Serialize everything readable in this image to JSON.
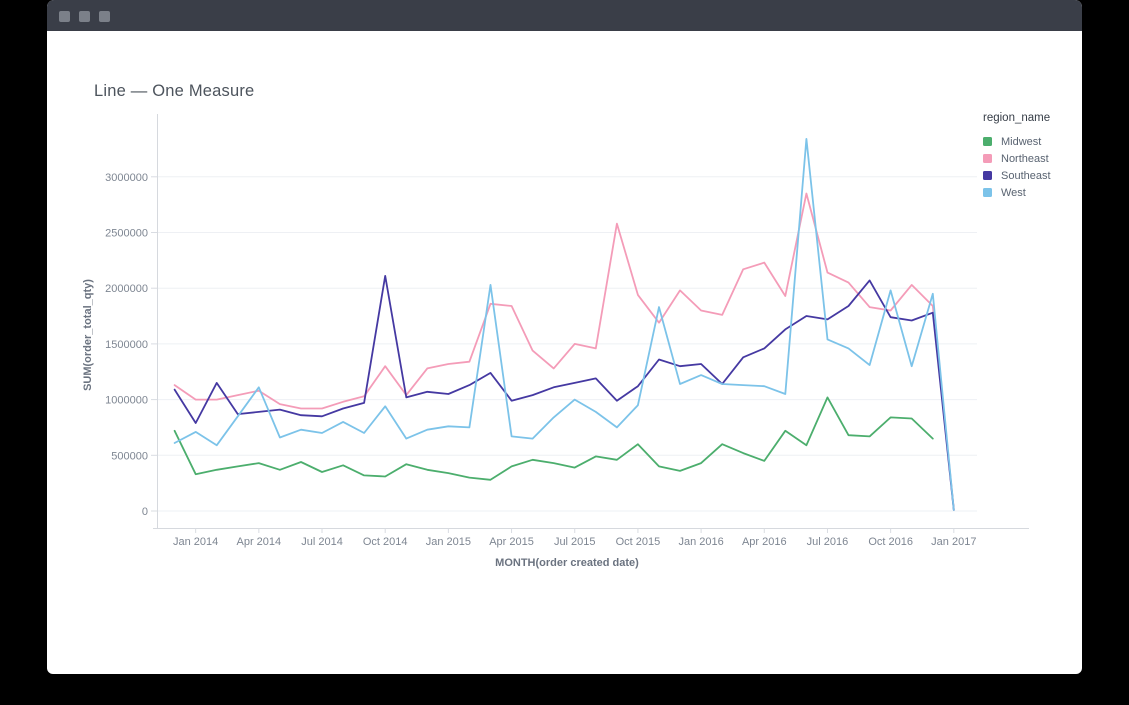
{
  "header": {
    "title": "Line — One Measure"
  },
  "window": {
    "dot_count": 3,
    "titlebar_color": "#3a3e48",
    "dot_color": "#7b8089"
  },
  "legend": {
    "title": "region_name",
    "items": [
      {
        "label": "Midwest",
        "color": "#4cae6d"
      },
      {
        "label": "Northeast",
        "color": "#f49cb8"
      },
      {
        "label": "Southeast",
        "color": "#4539a2"
      },
      {
        "label": "West",
        "color": "#7cc3e9"
      }
    ]
  },
  "chart_data": {
    "type": "line",
    "title": "Line — One Measure",
    "xlabel": "MONTH(order created date)",
    "ylabel": "SUM(order_total_qty)",
    "legend_position": "right",
    "grid": true,
    "ylim": [
      0,
      3400000
    ],
    "y_ticks": [
      0,
      500000,
      1000000,
      1500000,
      2000000,
      2500000,
      3000000
    ],
    "y_tick_labels": [
      "0",
      "500000",
      "1000000",
      "1500000",
      "2000000",
      "2500000",
      "3000000"
    ],
    "x": [
      "Dec 2013",
      "Jan 2014",
      "Feb 2014",
      "Mar 2014",
      "Apr 2014",
      "May 2014",
      "Jun 2014",
      "Jul 2014",
      "Aug 2014",
      "Sep 2014",
      "Oct 2014",
      "Nov 2014",
      "Dec 2014",
      "Jan 2015",
      "Feb 2015",
      "Mar 2015",
      "Apr 2015",
      "May 2015",
      "Jun 2015",
      "Jul 2015",
      "Aug 2015",
      "Sep 2015",
      "Oct 2015",
      "Nov 2015",
      "Dec 2015",
      "Jan 2016",
      "Feb 2016",
      "Mar 2016",
      "Apr 2016",
      "May 2016",
      "Jun 2016",
      "Jul 2016",
      "Aug 2016",
      "Sep 2016",
      "Oct 2016",
      "Nov 2016",
      "Dec 2016",
      "Jan 2017"
    ],
    "x_tick_every": 3,
    "x_tick_start_index": 1,
    "series": [
      {
        "name": "Midwest",
        "color": "#4cae6d",
        "values": [
          720000,
          330000,
          370000,
          400000,
          430000,
          370000,
          440000,
          350000,
          410000,
          320000,
          310000,
          420000,
          370000,
          340000,
          300000,
          280000,
          400000,
          460000,
          430000,
          390000,
          490000,
          460000,
          600000,
          400000,
          360000,
          430000,
          600000,
          520000,
          450000,
          720000,
          590000,
          1020000,
          680000,
          670000,
          840000,
          830000,
          650000,
          null
        ]
      },
      {
        "name": "Northeast",
        "color": "#f49cb8",
        "values": [
          1130000,
          1000000,
          1000000,
          1040000,
          1080000,
          960000,
          920000,
          920000,
          980000,
          1030000,
          1300000,
          1040000,
          1280000,
          1320000,
          1340000,
          1860000,
          1840000,
          1440000,
          1280000,
          1500000,
          1460000,
          2580000,
          1940000,
          1690000,
          1980000,
          1800000,
          1760000,
          2170000,
          2230000,
          1930000,
          2850000,
          2140000,
          2050000,
          1830000,
          1800000,
          2030000,
          1840000,
          20000
        ]
      },
      {
        "name": "Southeast",
        "color": "#4539a2",
        "values": [
          1090000,
          790000,
          1150000,
          870000,
          890000,
          910000,
          860000,
          850000,
          920000,
          970000,
          2110000,
          1020000,
          1070000,
          1050000,
          1130000,
          1240000,
          990000,
          1040000,
          1110000,
          1150000,
          1190000,
          990000,
          1120000,
          1360000,
          1300000,
          1320000,
          1140000,
          1380000,
          1460000,
          1630000,
          1750000,
          1720000,
          1840000,
          2070000,
          1740000,
          1710000,
          1780000,
          10000
        ]
      },
      {
        "name": "West",
        "color": "#7cc3e9",
        "values": [
          610000,
          710000,
          590000,
          850000,
          1110000,
          660000,
          730000,
          700000,
          800000,
          700000,
          940000,
          650000,
          730000,
          760000,
          750000,
          2030000,
          670000,
          650000,
          840000,
          1000000,
          890000,
          750000,
          950000,
          1830000,
          1140000,
          1220000,
          1140000,
          1130000,
          1120000,
          1050000,
          3340000,
          1540000,
          1460000,
          1310000,
          1980000,
          1300000,
          1950000,
          10000
        ]
      }
    ],
    "style": {
      "grid_color": "#eef0f4",
      "axis_color": "#d6d9de",
      "tick_color": "#d9dce2",
      "tick_label_color": "#7e8692",
      "axis_title_color": "#6b7380"
    }
  }
}
